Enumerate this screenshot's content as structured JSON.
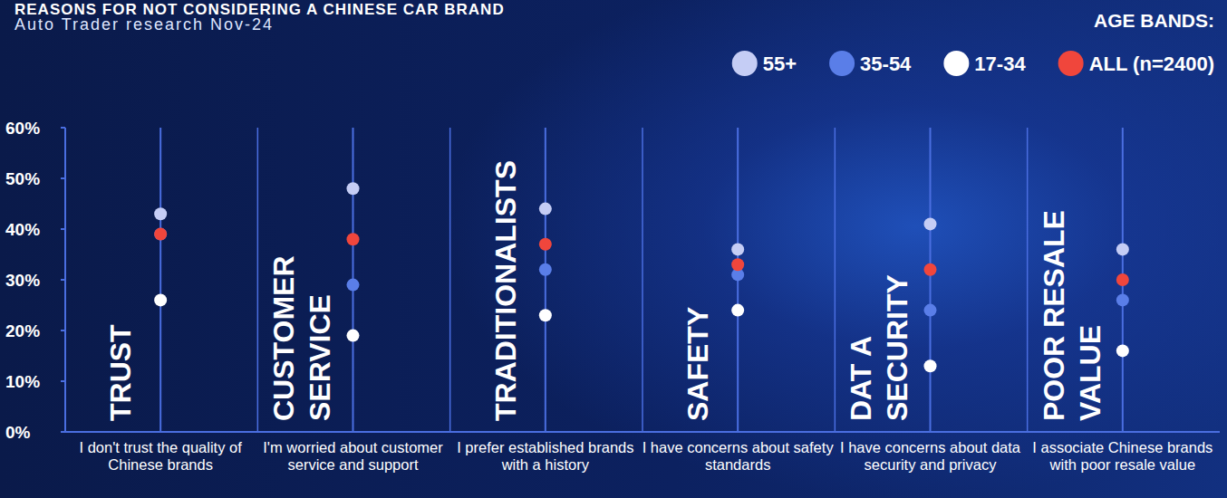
{
  "chart_data": {
    "type": "dot",
    "title": "REASONS FOR NOT CONSIDERING A CHINESE CAR BRAND",
    "subtitle": "Auto Trader research Nov-24",
    "legend_title": "AGE BANDS:",
    "category_titles": [
      "TRUST",
      "CUSTOMER SERVICE",
      "TRADITIONALISTS",
      "SAFETY",
      "DAT A SECURITY",
      "POOR RESALE VALUE"
    ],
    "categories": [
      "I don't trust the quality of Chinese brands",
      "I'm worried about customer service and support",
      "I prefer established brands with a history",
      "I have concerns about safety standards",
      "I have concerns about data security and privacy",
      "I associate Chinese brands with poor resale value"
    ],
    "series": [
      {
        "name": "55+",
        "color": "#c5cdf5",
        "values": [
          43,
          48,
          44,
          36,
          41,
          36
        ]
      },
      {
        "name": "35-54",
        "color": "#5a7ee8",
        "values": [
          39,
          29,
          32,
          31,
          24,
          26
        ]
      },
      {
        "name": "17-34",
        "color": "#ffffff",
        "values": [
          26,
          19,
          23,
          24,
          13,
          16
        ]
      },
      {
        "name": "ALL (n=2400)",
        "color": "#f0463c",
        "values": [
          39,
          38,
          37,
          33,
          32,
          30
        ]
      }
    ],
    "ylim": [
      0,
      60
    ],
    "yticks": [
      {
        "value": 0,
        "label": "0%"
      },
      {
        "value": 10,
        "label": "10%"
      },
      {
        "value": 20,
        "label": "20%"
      },
      {
        "value": 30,
        "label": "30%"
      },
      {
        "value": 40,
        "label": "40%"
      },
      {
        "value": 50,
        "label": "50%"
      },
      {
        "value": 60,
        "label": "60%"
      }
    ],
    "grid": false,
    "legend": "top-right"
  }
}
